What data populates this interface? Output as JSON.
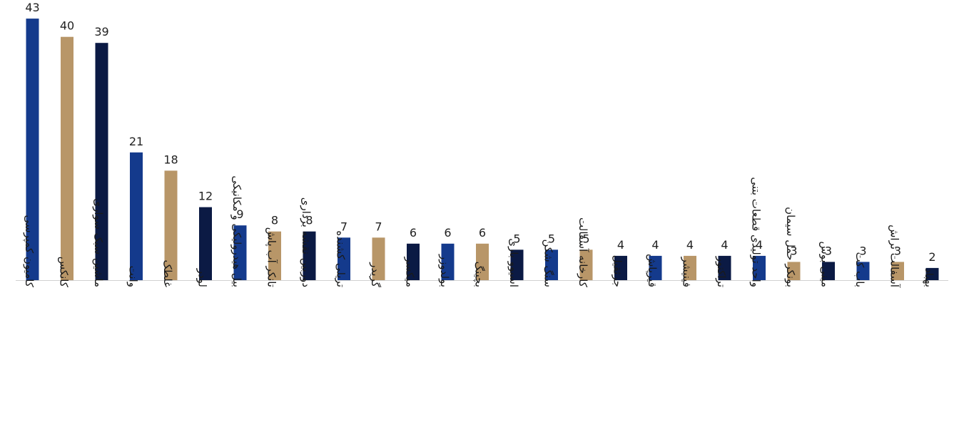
{
  "chart_data": {
    "type": "bar",
    "title": "",
    "xlabel": "",
    "ylabel": "",
    "ylim": [
      0,
      45
    ],
    "grid": false,
    "legend": "none",
    "colors": [
      "#143a8c",
      "#b89668",
      "#0b1a44"
    ],
    "categories": [
      "کامیون کمپرسی",
      "کانکس",
      "ماشین سبک سواری",
      "وانت",
      "غلطک",
      "لودر",
      "بیل هیدرولیکی و مکانیکی",
      "تانکر آب پاش",
      "دوربین نقشه برداری",
      "تریلی کشنده",
      "گریدر",
      "میکسر",
      "بولدوزر",
      "بچینگ",
      "اسیوو باری",
      "سنگ شکن",
      "کارخانه آسفالت",
      "جرثقیل",
      "قیرپاش",
      "فینیشر",
      "تراکتور",
      "واحد تولیدی قطعات بتنی",
      "بونکر حمل سیمان",
      "مینی بوس",
      "باب کت",
      "آسفالت تراش",
      "بهباد"
    ],
    "values": [
      43,
      40,
      39,
      21,
      18,
      12,
      9,
      8,
      8,
      7,
      7,
      6,
      6,
      6,
      5,
      5,
      5,
      4,
      4,
      4,
      4,
      4,
      3,
      3,
      3,
      3,
      2
    ]
  }
}
